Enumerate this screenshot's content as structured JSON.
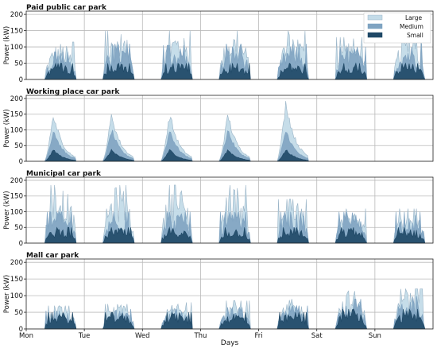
{
  "colors": {
    "large": "#c3dbe8",
    "medium": "#7fa3c1",
    "small": "#1f4866",
    "large_edge": "#9ab4c7"
  },
  "legend": {
    "items": [
      "Large",
      "Medium",
      "Small"
    ],
    "position": "top-right"
  },
  "x_axis_label": "Days",
  "y_axis_label": "Power (kW)",
  "chart_data": [
    {
      "type": "area",
      "title": "Paid public car park",
      "xlabel": "",
      "ylabel": "Power (kW)",
      "categories": [
        "Mon",
        "Tue",
        "Wed",
        "Thu",
        "Fri",
        "Sat",
        "Sun"
      ],
      "y_ticks": [
        0,
        50,
        100,
        150,
        200
      ],
      "ylim": [
        0,
        210
      ],
      "grid": true,
      "series": [
        {
          "name": "Large",
          "daily_peak_kW": [
            115,
            150,
            150,
            150,
            150,
            130,
            140
          ]
        },
        {
          "name": "Medium",
          "daily_peak_kW": [
            85,
            110,
            105,
            110,
            110,
            100,
            110
          ]
        },
        {
          "name": "Small",
          "daily_peak_kW": [
            50,
            50,
            50,
            50,
            50,
            50,
            50
          ]
        }
      ]
    },
    {
      "type": "area",
      "title": "Working place car park",
      "xlabel": "",
      "ylabel": "Power (kW)",
      "categories": [
        "Mon",
        "Tue",
        "Wed",
        "Thu",
        "Fri",
        "Sat",
        "Sun"
      ],
      "y_ticks": [
        0,
        50,
        100,
        150,
        200
      ],
      "ylim": [
        0,
        210
      ],
      "grid": true,
      "series": [
        {
          "name": "Large",
          "daily_peak_kW": [
            165,
            165,
            165,
            165,
            210,
            0,
            0
          ]
        },
        {
          "name": "Medium",
          "daily_peak_kW": [
            110,
            110,
            110,
            110,
            110,
            0,
            0
          ]
        },
        {
          "name": "Small",
          "daily_peak_kW": [
            40,
            40,
            40,
            40,
            40,
            0,
            0
          ]
        }
      ]
    },
    {
      "type": "area",
      "title": "Municipal car park",
      "xlabel": "",
      "ylabel": "Power (kW)",
      "categories": [
        "Mon",
        "Tue",
        "Wed",
        "Thu",
        "Fri",
        "Sat",
        "Sun"
      ],
      "y_ticks": [
        0,
        50,
        100,
        150,
        200
      ],
      "ylim": [
        0,
        210
      ],
      "grid": true,
      "series": [
        {
          "name": "Large",
          "daily_peak_kW": [
            185,
            185,
            185,
            185,
            140,
            110,
            110
          ]
        },
        {
          "name": "Medium",
          "daily_peak_kW": [
            100,
            100,
            100,
            100,
            100,
            100,
            100
          ]
        },
        {
          "name": "Small",
          "daily_peak_kW": [
            50,
            50,
            50,
            50,
            50,
            50,
            50
          ]
        }
      ]
    },
    {
      "type": "area",
      "title": "Mall car park",
      "xlabel": "Days",
      "ylabel": "Power (kW)",
      "categories": [
        "Mon",
        "Tue",
        "Wed",
        "Thu",
        "Fri",
        "Sat",
        "Sun"
      ],
      "y_ticks": [
        0,
        50,
        100,
        150,
        200
      ],
      "ylim": [
        0,
        210
      ],
      "grid": true,
      "series": [
        {
          "name": "Large",
          "daily_peak_kW": [
            70,
            75,
            80,
            85,
            90,
            120,
            120
          ]
        },
        {
          "name": "Medium",
          "daily_peak_kW": [
            55,
            60,
            60,
            65,
            70,
            90,
            100
          ]
        },
        {
          "name": "Small",
          "daily_peak_kW": [
            50,
            50,
            50,
            50,
            50,
            60,
            60
          ]
        }
      ]
    }
  ]
}
